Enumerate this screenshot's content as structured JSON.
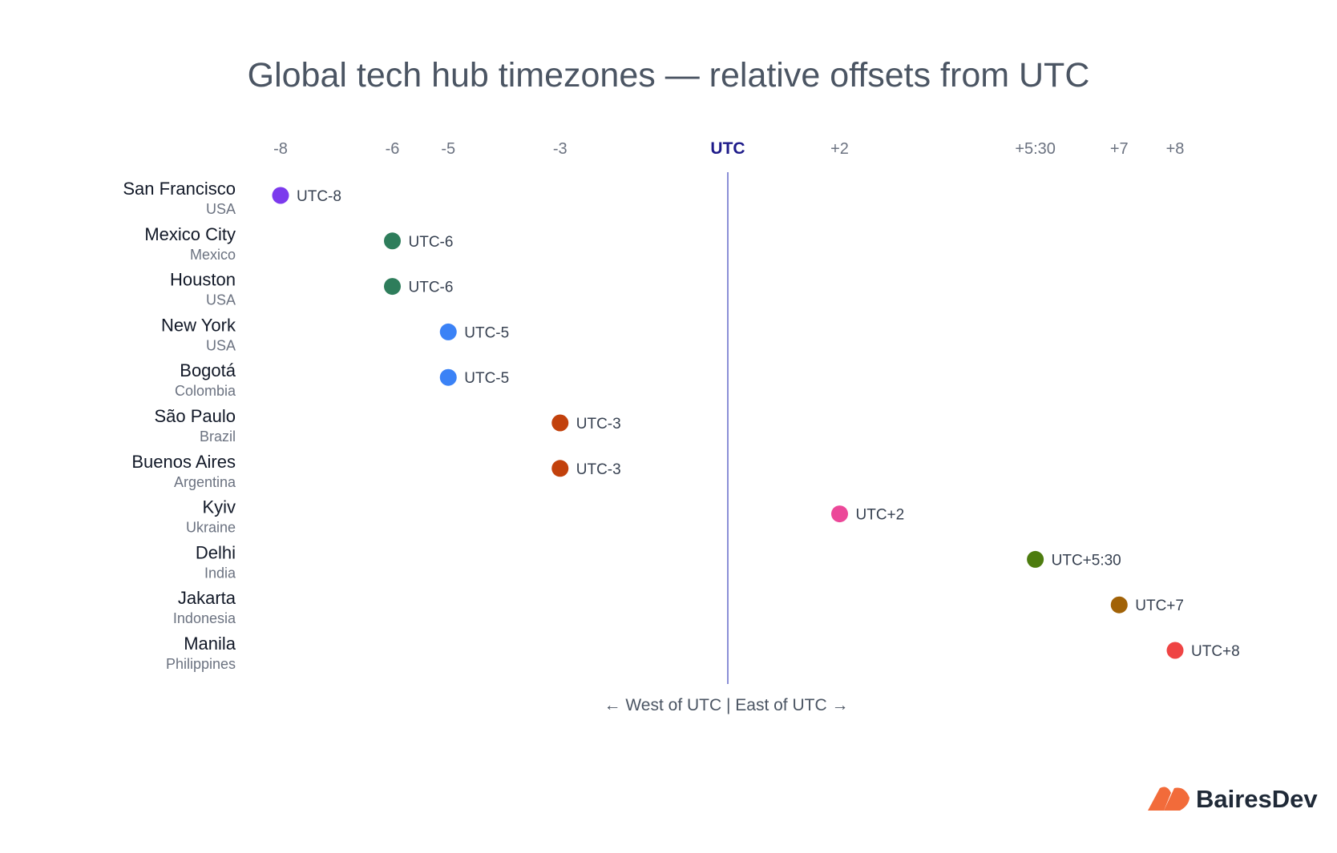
{
  "chart_data": {
    "type": "scatter",
    "title": "Global tech hub timezones — relative offsets from UTC",
    "x_ticks": [
      {
        "value": -8,
        "label": "-8"
      },
      {
        "value": -6,
        "label": "-6"
      },
      {
        "value": -5,
        "label": "-5"
      },
      {
        "value": -3,
        "label": "-3"
      },
      {
        "value": 0,
        "label": "UTC"
      },
      {
        "value": 2,
        "label": "+2"
      },
      {
        "value": 5.5,
        "label": "+5:30"
      },
      {
        "value": 7,
        "label": "+7"
      },
      {
        "value": 8,
        "label": "+8"
      }
    ],
    "xlim": [
      -8,
      8
    ],
    "reference_line": {
      "value": 0
    },
    "points": [
      {
        "city": "San Francisco",
        "country": "USA",
        "offset": -8,
        "label": "UTC-8",
        "color": "#7c3aed"
      },
      {
        "city": "Mexico City",
        "country": "Mexico",
        "offset": -6,
        "label": "UTC-6",
        "color": "#2e7d5b"
      },
      {
        "city": "Houston",
        "country": "USA",
        "offset": -6,
        "label": "UTC-6",
        "color": "#2e7d5b"
      },
      {
        "city": "New York",
        "country": "USA",
        "offset": -5,
        "label": "UTC-5",
        "color": "#3b82f6"
      },
      {
        "city": "Bogotá",
        "country": "Colombia",
        "offset": -5,
        "label": "UTC-5",
        "color": "#3b82f6"
      },
      {
        "city": "São Paulo",
        "country": "Brazil",
        "offset": -3,
        "label": "UTC-3",
        "color": "#c2410c"
      },
      {
        "city": "Buenos Aires",
        "country": "Argentina",
        "offset": -3,
        "label": "UTC-3",
        "color": "#c2410c"
      },
      {
        "city": "Kyiv",
        "country": "Ukraine",
        "offset": 2,
        "label": "UTC+2",
        "color": "#ec4899"
      },
      {
        "city": "Delhi",
        "country": "India",
        "offset": 5.5,
        "label": "UTC+5:30",
        "color": "#4d7c0f"
      },
      {
        "city": "Jakarta",
        "country": "Indonesia",
        "offset": 7,
        "label": "UTC+7",
        "color": "#a16207"
      },
      {
        "city": "Manila",
        "country": "Philippines",
        "offset": 8,
        "label": "UTC+8",
        "color": "#ef4444"
      }
    ],
    "axis_caption": "← West of UTC  |  East of UTC →",
    "utc_color": "#1e1b8a",
    "line_color": "#8b8fd6"
  },
  "brand": {
    "name": "BairesDev",
    "logo_color": "#f26b3a"
  }
}
